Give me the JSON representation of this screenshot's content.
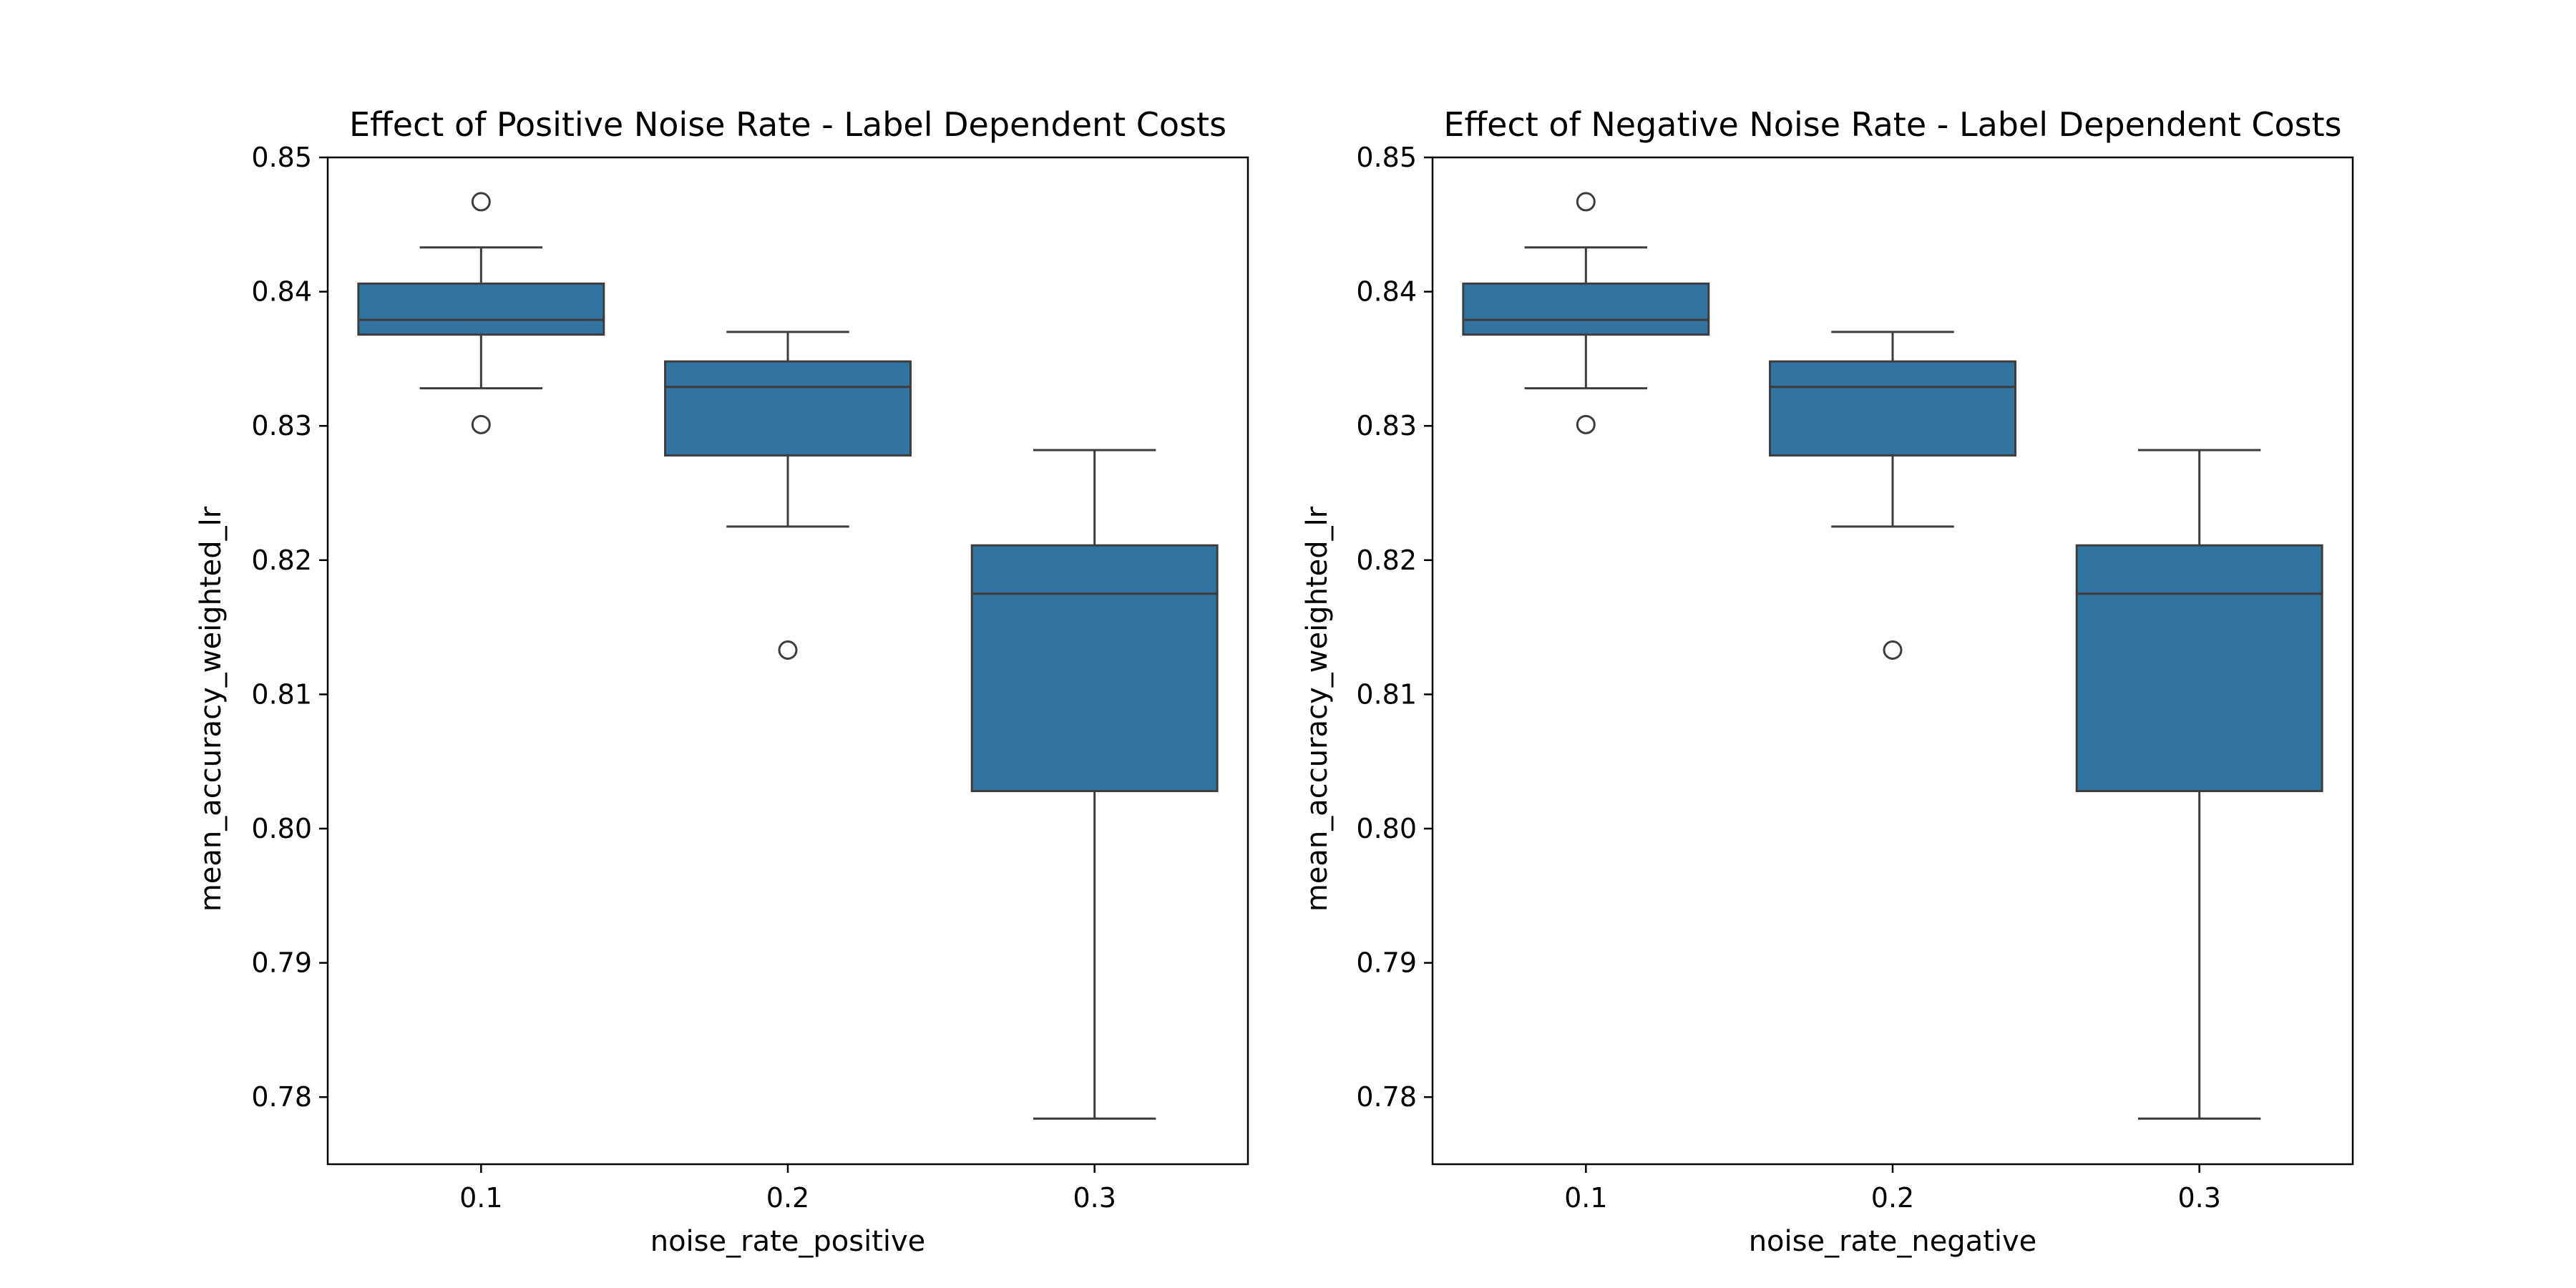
{
  "colors": {
    "box_fill": "#3274a1",
    "line": "#3d3d3d",
    "axes": "#000000"
  },
  "chart_data": [
    {
      "type": "box",
      "title": "Effect of Positive Noise Rate - Label Dependent Costs",
      "xlabel": "noise_rate_positive",
      "ylabel": "mean_accuracy_weighted_lr",
      "categories": [
        "0.1",
        "0.2",
        "0.3"
      ],
      "ylim": [
        0.775,
        0.85
      ],
      "yticks": [
        0.78,
        0.79,
        0.8,
        0.81,
        0.82,
        0.83,
        0.84,
        0.85
      ],
      "ytick_labels": [
        "0.78",
        "0.79",
        "0.80",
        "0.81",
        "0.82",
        "0.83",
        "0.84",
        "0.85"
      ],
      "grid": false,
      "boxes": [
        {
          "category": "0.1",
          "whisker_low": 0.8328,
          "q1": 0.8368,
          "median": 0.8379,
          "q3": 0.8406,
          "whisker_high": 0.8433,
          "outliers": [
            0.8467,
            0.8301
          ]
        },
        {
          "category": "0.2",
          "whisker_low": 0.8225,
          "q1": 0.8278,
          "median": 0.8329,
          "q3": 0.8348,
          "whisker_high": 0.837,
          "outliers": [
            0.8133
          ]
        },
        {
          "category": "0.3",
          "whisker_low": 0.7784,
          "q1": 0.8028,
          "median": 0.8175,
          "q3": 0.8211,
          "whisker_high": 0.8282,
          "outliers": []
        }
      ]
    },
    {
      "type": "box",
      "title": "Effect of Negative Noise Rate - Label Dependent Costs",
      "xlabel": "noise_rate_negative",
      "ylabel": "mean_accuracy_weighted_lr",
      "categories": [
        "0.1",
        "0.2",
        "0.3"
      ],
      "ylim": [
        0.775,
        0.85
      ],
      "yticks": [
        0.78,
        0.79,
        0.8,
        0.81,
        0.82,
        0.83,
        0.84,
        0.85
      ],
      "ytick_labels": [
        "0.78",
        "0.79",
        "0.80",
        "0.81",
        "0.82",
        "0.83",
        "0.84",
        "0.85"
      ],
      "grid": false,
      "boxes": [
        {
          "category": "0.1",
          "whisker_low": 0.8328,
          "q1": 0.8368,
          "median": 0.8379,
          "q3": 0.8406,
          "whisker_high": 0.8433,
          "outliers": [
            0.8467,
            0.8301
          ]
        },
        {
          "category": "0.2",
          "whisker_low": 0.8225,
          "q1": 0.8278,
          "median": 0.8329,
          "q3": 0.8348,
          "whisker_high": 0.837,
          "outliers": [
            0.8133
          ]
        },
        {
          "category": "0.3",
          "whisker_low": 0.7784,
          "q1": 0.8028,
          "median": 0.8175,
          "q3": 0.8211,
          "whisker_high": 0.8282,
          "outliers": []
        }
      ]
    }
  ]
}
